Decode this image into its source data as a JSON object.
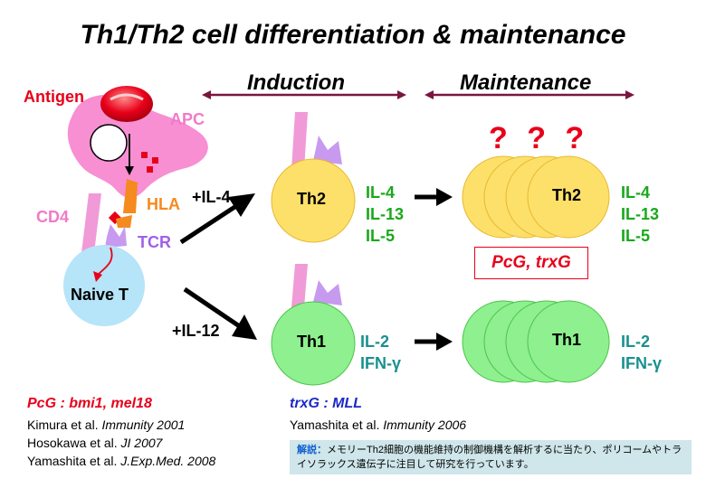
{
  "title": "Th1/Th2 cell differentiation & maintenance",
  "phases": {
    "induction": "Induction",
    "maintenance": "Maintenance"
  },
  "labels": {
    "antigen": "Antigen",
    "apc": "APC",
    "hla": "HLA",
    "cd4": "CD4",
    "tcr": "TCR",
    "naive_t": "Naive T",
    "il4_stim": "+IL-4",
    "il12_stim": "+IL-12",
    "th2": "Th2",
    "th1": "Th1",
    "th2_memory": "Th2",
    "th1_memory": "Th1",
    "question_marks": "? ? ?",
    "pcg_trxg": "PcG, trxG"
  },
  "cytokines": {
    "th2": [
      "IL-4",
      "IL-13",
      "IL-5"
    ],
    "th1": [
      "IL-2",
      "IFN-γ"
    ],
    "th2_memory": [
      "IL-4",
      "IL-13",
      "IL-5"
    ],
    "th1_memory": [
      "IL-2",
      "IFN-γ"
    ]
  },
  "references": {
    "pcg_head": "PcG : bmi1, mel18",
    "pcg_refs": [
      {
        "authors": "Kimura et al.",
        "journal": "Immunity 2001"
      },
      {
        "authors": "Hosokawa et al.",
        "journal": "JI 2007"
      },
      {
        "authors": "Yamashita et al.",
        "journal": "J.Exp.Med. 2008"
      }
    ],
    "trxg_head": "trxG : MLL",
    "trxg_refs": [
      {
        "authors": "Yamashita et al.",
        "journal": "Immunity 2006"
      }
    ]
  },
  "note": {
    "label": "解説：",
    "text": "メモリーTh2細胞の機能維持の制御機構を解析するに当たり、ポリコームやトライソラックス遺伝子に注目して研究を行っています。"
  },
  "colors": {
    "th2_fill": "#fde06a",
    "th1_fill": "#8ef08e",
    "naive_fill": "#b6e4f8",
    "apc_fill": "#f78fd2",
    "receptor_pink": "#f09ad8",
    "receptor_purple": "#c79af0",
    "hla_orange": "#f58a1f",
    "antigen_red": "#e8001a",
    "cytokine_green": "#1aa81a",
    "cytokine_teal": "#1a9090",
    "phase_arrow": "#7a1540",
    "ref_red": "#e8001a",
    "ref_blue": "#1a28c8"
  }
}
